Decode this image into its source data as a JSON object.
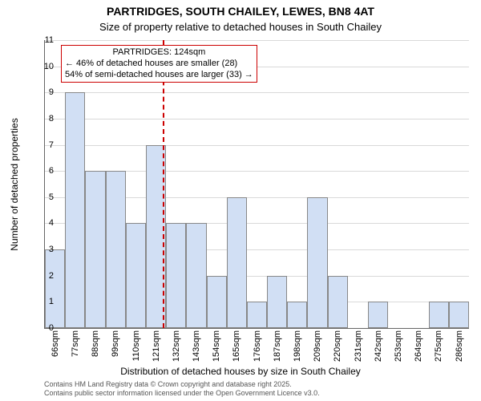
{
  "title_line1": "PARTRIDGES, SOUTH CHAILEY, LEWES, BN8 4AT",
  "title_line2": "Size of property relative to detached houses in South Chailey",
  "title_fontsize": 14,
  "subtitle_fontsize": 13,
  "y_axis": {
    "label": "Number of detached properties",
    "fontsize": 12,
    "min": 0,
    "max": 11,
    "step": 1,
    "ticks": [
      0,
      1,
      2,
      3,
      4,
      5,
      6,
      7,
      8,
      9,
      10,
      11
    ]
  },
  "x_axis": {
    "label": "Distribution of detached houses by size in South Chailey",
    "fontsize": 12,
    "tick_suffix": "sqm",
    "tick_fontsize": 11,
    "tick_values": [
      66,
      77,
      88,
      99,
      110,
      121,
      132,
      143,
      154,
      165,
      176,
      187,
      198,
      209,
      220,
      231,
      242,
      253,
      264,
      275,
      286
    ]
  },
  "chart": {
    "type": "histogram",
    "bar_color": "#d1dff4",
    "bar_border_color": "#888888",
    "background_color": "#ffffff",
    "grid_color": "#d9d9d9",
    "bar_border_width": 1,
    "bin_start": 60,
    "bin_width": 11,
    "n_bins": 21,
    "values": [
      3,
      9,
      6,
      6,
      4,
      7,
      4,
      4,
      2,
      5,
      1,
      2,
      1,
      5,
      2,
      0,
      1,
      0,
      0,
      1,
      1
    ],
    "reference_value": 124,
    "reference_color": "#cc0000",
    "reference_dash": "dashed"
  },
  "annotation": {
    "border_color": "#cc0000",
    "bg_color": "#ffffff",
    "fontsize": 11,
    "lines": [
      "PARTRIDGES: 124sqm",
      "← 46% of detached houses are smaller (28)",
      "54% of semi-detached houses are larger (33) →"
    ]
  },
  "footer": {
    "fontsize": 9,
    "color": "#555555",
    "line1": "Contains HM Land Registry data © Crown copyright and database right 2025.",
    "line2": "Contains public sector information licensed under the Open Government Licence v3.0."
  }
}
